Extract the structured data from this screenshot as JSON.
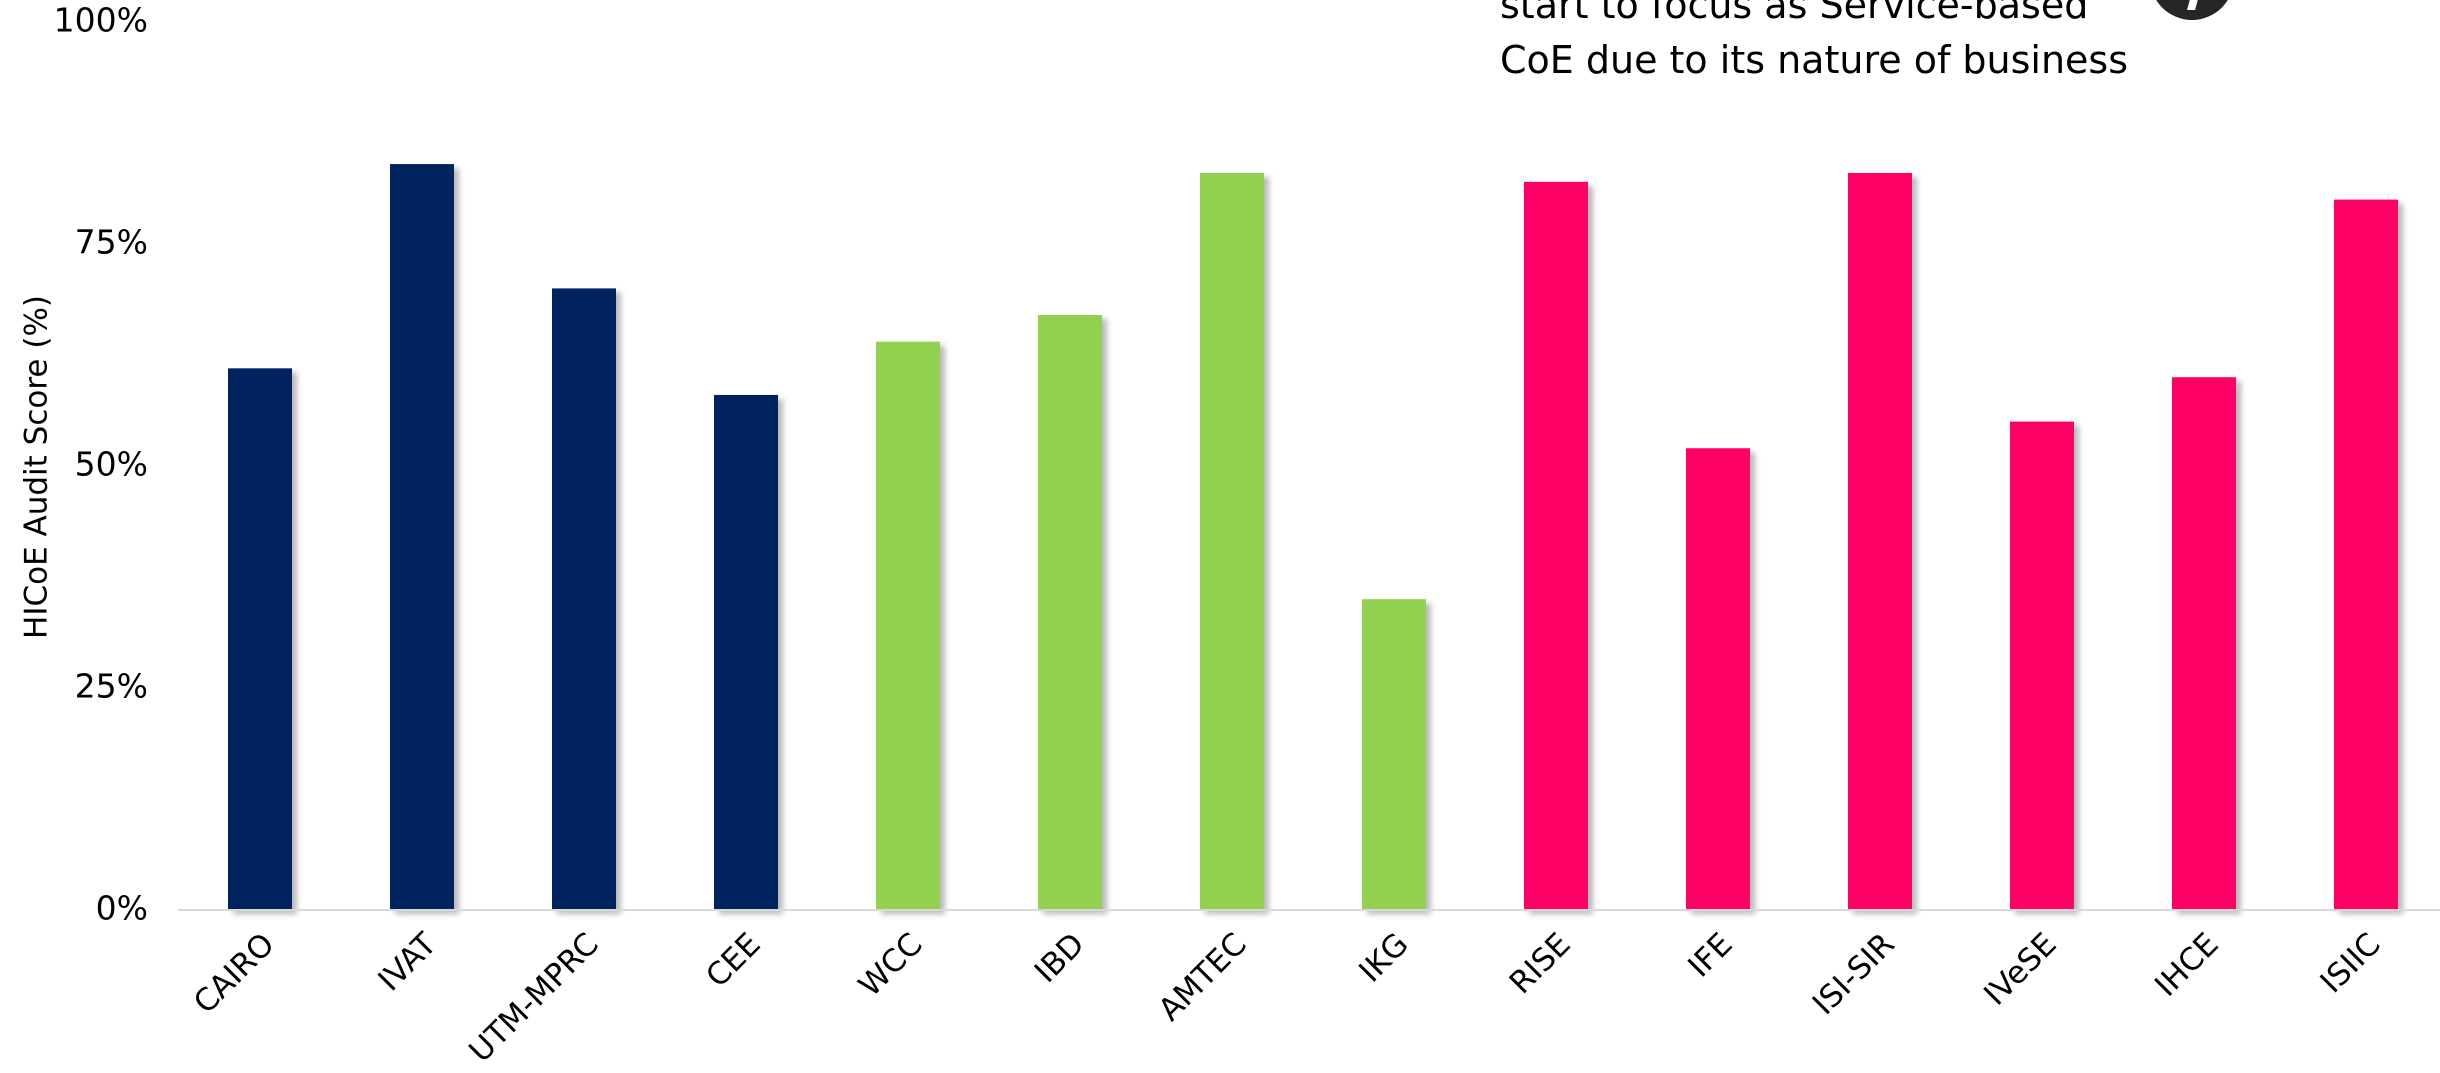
{
  "chart_data": {
    "type": "bar",
    "ylabel": "HICoE Audit Score (%)",
    "xlabel": "",
    "ylim": [
      0,
      100
    ],
    "yticks": [
      "0%",
      "25%",
      "50%",
      "75%",
      "100%"
    ],
    "ytick_values": [
      0,
      25,
      50,
      75,
      100
    ],
    "grid": false,
    "categories": [
      "CAIRO",
      "IVAT",
      "UTM-MPRC",
      "CEE",
      "WCC",
      "IBD",
      "AMTEC",
      "IKG",
      "RISE",
      "IFE",
      "ISI-SIR",
      "IVeSE",
      "IHCE",
      "ISIIC"
    ],
    "values": [
      61,
      84,
      70,
      58,
      64,
      67,
      83,
      35,
      82,
      52,
      83,
      55,
      60,
      80
    ],
    "bar_colors": [
      "#03205E",
      "#03205E",
      "#03205E",
      "#03205E",
      "#92D050",
      "#92D050",
      "#92D050",
      "#92D050",
      "#FF0066",
      "#FF0066",
      "#FF0066",
      "#FF0066",
      "#FF0066",
      "#FF0066"
    ]
  },
  "annotation": {
    "lines": [
      "start to focus as Service-based",
      "CoE due to its nature of business"
    ]
  },
  "badge": {
    "icon": "dark-circle-badge-icon"
  }
}
